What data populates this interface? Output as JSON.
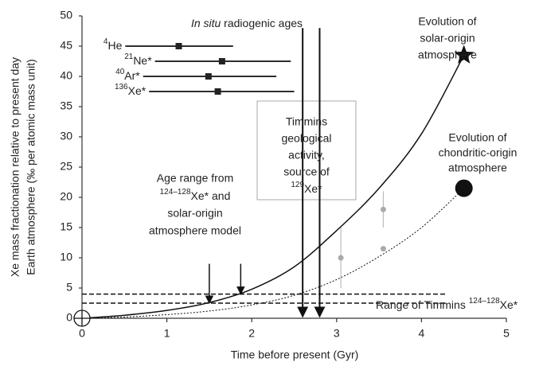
{
  "chart_data": {
    "type": "line",
    "xlabel": "Time before present (Gyr)",
    "ylabel": [
      "Xe mass fractionation relative to present day",
      "Earth atmosphere (‰ per atomic mass unit)"
    ],
    "xlim": [
      0,
      5
    ],
    "xticks": [
      0,
      1,
      2,
      3,
      4,
      5
    ],
    "ylim": [
      0,
      50
    ],
    "yticks": [
      0,
      5,
      10,
      15,
      20,
      25,
      30,
      35,
      40,
      45,
      50
    ],
    "series": [
      {
        "name": "solar-origin",
        "style": "solid",
        "marker": "star",
        "color": "#111",
        "x": [
          0,
          0.5,
          1,
          1.5,
          2,
          2.5,
          3,
          3.5,
          4,
          4.5
        ],
        "values": [
          0,
          0.5,
          1.3,
          2.6,
          4.8,
          8.5,
          14.5,
          21.5,
          30.5,
          43.5
        ]
      },
      {
        "name": "chondritic-origin",
        "style": "dotted",
        "marker": "circle",
        "color": "#111",
        "x": [
          0,
          0.5,
          1,
          1.5,
          2,
          2.5,
          3,
          3.5,
          4,
          4.5
        ],
        "values": [
          0,
          0.2,
          0.6,
          1.2,
          2.2,
          3.8,
          6.4,
          10.2,
          15,
          21.5
        ]
      }
    ],
    "samples": [
      {
        "x": 3.05,
        "y": 10,
        "err": 5
      },
      {
        "x": 3.55,
        "y": 18,
        "err": 3
      },
      {
        "x": 3.55,
        "y": 11.5
      }
    ],
    "ages": [
      {
        "mass": "4",
        "element": "He",
        "min": 0.51,
        "max": 1.78,
        "value": 1.14,
        "y": 45
      },
      {
        "mass": "21",
        "element": "Ne*",
        "min": 0.86,
        "max": 2.46,
        "value": 1.65,
        "y": 42.5
      },
      {
        "mass": "40",
        "element": "Ar*",
        "min": 0.72,
        "max": 2.29,
        "value": 1.49,
        "y": 40
      },
      {
        "mass": "136",
        "element": "Xe*",
        "min": 0.79,
        "max": 2.5,
        "value": 1.6,
        "y": 37.5
      }
    ],
    "timmins_activity": {
      "x": [
        2.6,
        2.8
      ],
      "top": 48
    },
    "age_range_arrows": {
      "x": [
        1.5,
        1.87
      ],
      "from": 9,
      "to": [
        2.5,
        4
      ]
    },
    "timmins_range": {
      "y": [
        2.5,
        4
      ],
      "xmax": 4.3
    },
    "annotations": [
      {
        "lines": [
          [
            {
              "italic": "In situ"
            },
            " radiogenic ages"
          ]
        ]
      },
      {
        "lines": [
          "Evolution of",
          "solar-origin",
          "atmosphere"
        ]
      },
      {
        "lines": [
          "Timmins",
          "geological",
          "activity,",
          "source of",
          [
            {
              "sup": "129"
            },
            "Xe*"
          ]
        ]
      },
      {
        "lines": [
          "Age range from",
          [
            {
              "sup": "124–128"
            },
            "Xe* and"
          ],
          "solar-origin",
          "atmosphere model"
        ]
      },
      {
        "lines": [
          "Evolution of",
          "chondritic-origin",
          "atmosphere"
        ]
      },
      {
        "lines": [
          [
            "Range of Timmins ",
            {
              "sup": "124–128"
            },
            "Xe*"
          ]
        ]
      }
    ]
  }
}
